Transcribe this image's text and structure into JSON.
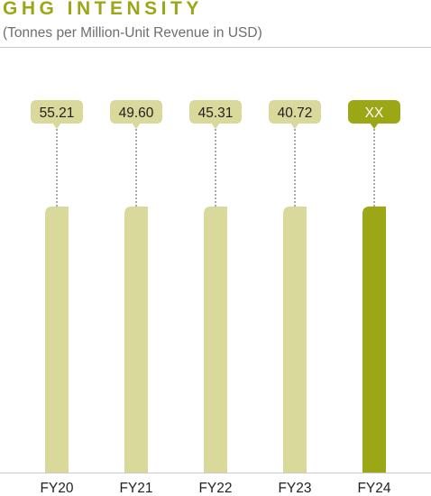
{
  "colors": {
    "title": "#9ca715",
    "bar": "#d8d99a",
    "bar_highlight": "#9ca715",
    "label_text": "#231f20",
    "label_highlight_text": "#ffffff",
    "axis": "#c8c8c8",
    "connector": "#555555"
  },
  "chart_data": {
    "type": "bar",
    "title": "GHG INTENSITY",
    "subtitle": "(Tonnes per Million-Unit Revenue in USD)",
    "categories": [
      "FY20",
      "FY21",
      "FY22",
      "FY23",
      "FY24"
    ],
    "values": [
      55.21,
      49.6,
      45.31,
      40.72,
      null
    ],
    "labels": [
      "55.21",
      "49.60",
      "45.31",
      "40.72",
      "XX"
    ],
    "highlight_index": 4,
    "equal_bar_heights": true,
    "grid": false,
    "legend": "none"
  }
}
